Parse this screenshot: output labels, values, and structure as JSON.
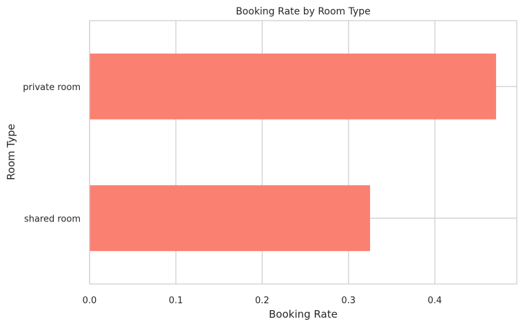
{
  "chart_data": {
    "type": "bar",
    "orientation": "horizontal",
    "title": "Booking Rate by Room Type",
    "xlabel": "Booking Rate",
    "ylabel": "Room Type",
    "categories": [
      "private room",
      "shared room"
    ],
    "values": [
      0.471,
      0.325
    ],
    "xlim": [
      0.0,
      0.495
    ],
    "xticks": [
      0.0,
      0.1,
      0.2,
      0.3,
      0.4
    ],
    "xtick_labels": [
      "0.0",
      "0.1",
      "0.2",
      "0.3",
      "0.4"
    ],
    "grid": true,
    "legend": "none",
    "bar_color": "#fa8072",
    "grid_color": "#cccccc",
    "spine_color": "#cccccc"
  }
}
